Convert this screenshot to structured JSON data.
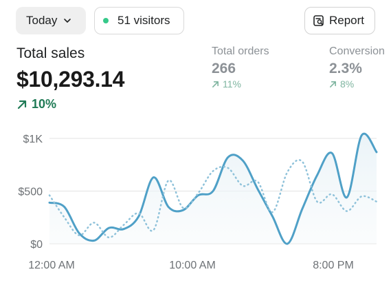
{
  "toolbar": {
    "date_range": "Today",
    "visitors": "51 visitors",
    "report": "Report"
  },
  "metrics": {
    "total_sales": {
      "label": "Total sales",
      "value": "$10,293.14",
      "delta": "10%"
    },
    "total_orders": {
      "label": "Total orders",
      "value": "266",
      "delta": "11%"
    },
    "conversion": {
      "label": "Conversion",
      "value": "2.3%",
      "delta": "8%"
    }
  },
  "colors": {
    "accent": "#4fa0c7",
    "positive": "#1f7a55",
    "live_dot": "#36c98a"
  },
  "chart_data": {
    "type": "line",
    "y_ticks": [
      "$1K",
      "$500",
      "$0"
    ],
    "ylim": [
      0,
      1000
    ],
    "x_ticks": [
      "12:00 AM",
      "10:00 AM",
      "8:00 PM"
    ],
    "x": [
      0,
      1,
      2,
      3,
      4,
      5,
      6,
      7,
      8,
      9,
      10,
      11,
      12,
      13,
      14,
      15,
      16,
      17,
      18,
      19,
      20,
      21,
      22
    ],
    "series": [
      {
        "style": "solid",
        "values": [
          390,
          350,
          100,
          30,
          150,
          140,
          260,
          630,
          350,
          320,
          460,
          500,
          820,
          790,
          520,
          260,
          0,
          330,
          650,
          860,
          440,
          1030,
          870
        ]
      },
      {
        "style": "dotted",
        "values": [
          460,
          250,
          80,
          200,
          60,
          180,
          290,
          130,
          600,
          340,
          480,
          690,
          720,
          550,
          590,
          300,
          680,
          780,
          400,
          470,
          310,
          450,
          400
        ]
      }
    ],
    "grid": true
  }
}
